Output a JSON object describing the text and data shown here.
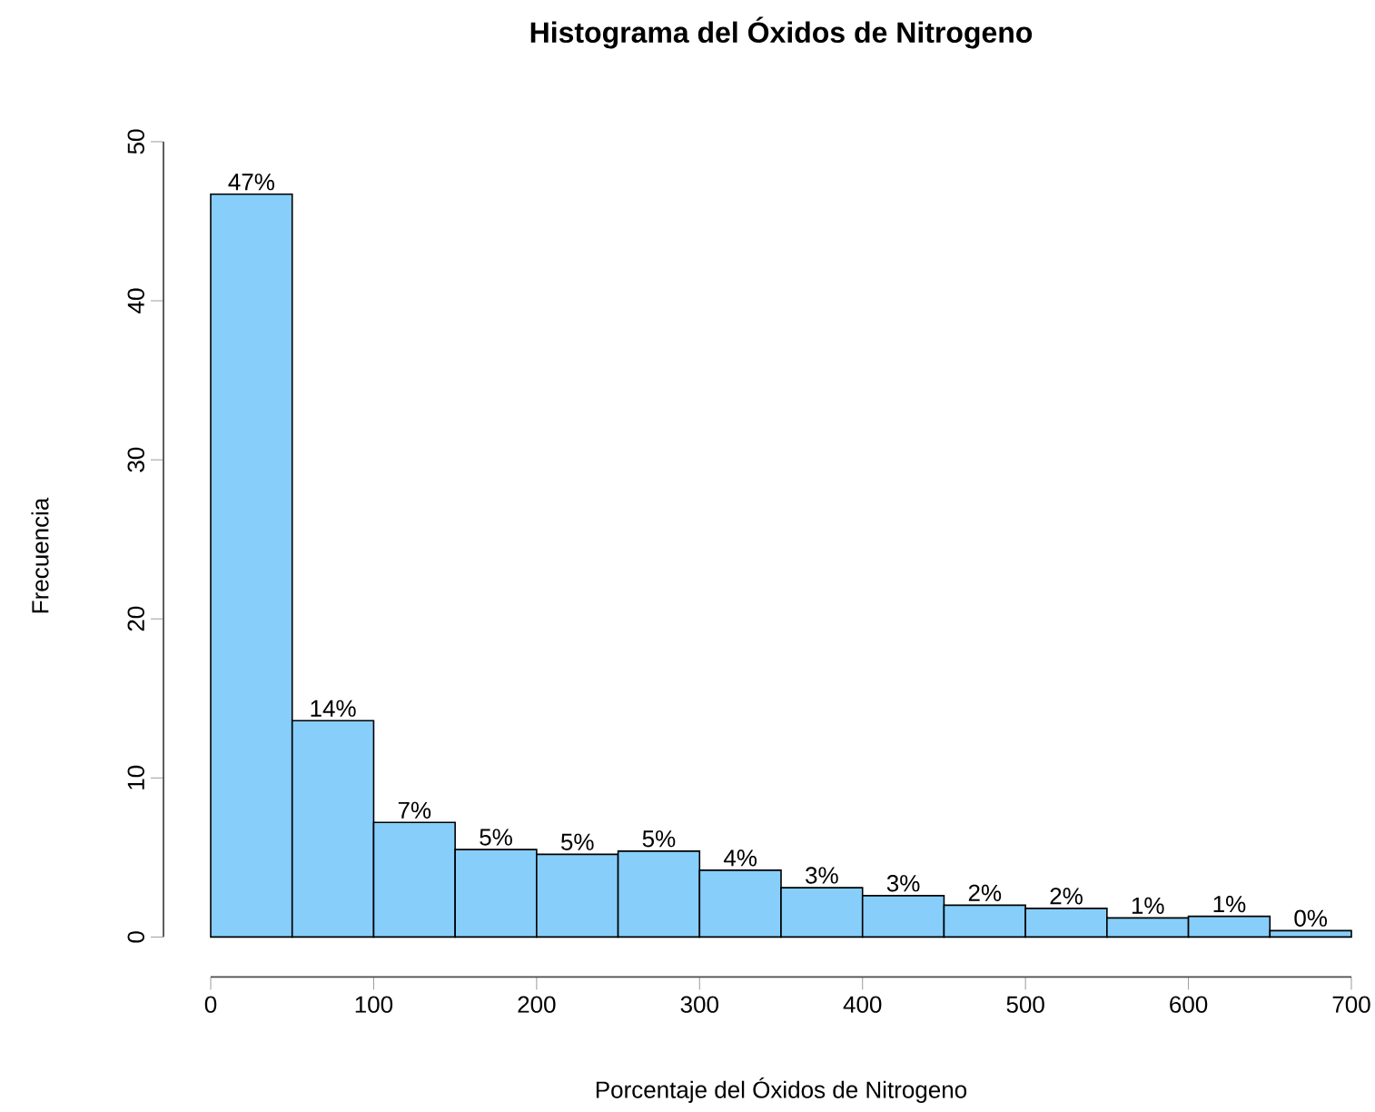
{
  "chart_data": {
    "type": "histogram",
    "title": "Histograma del Óxidos de Nitrogeno",
    "xlabel": "Porcentaje del Óxidos de Nitrogeno",
    "ylabel": "Frecuencia",
    "bins": [
      0,
      50,
      100,
      150,
      200,
      250,
      300,
      350,
      400,
      450,
      500,
      550,
      600,
      650,
      700
    ],
    "values": [
      46.7,
      13.6,
      7.2,
      5.5,
      5.2,
      5.4,
      4.2,
      3.1,
      2.6,
      2.0,
      1.8,
      1.2,
      1.3,
      0.4
    ],
    "value_labels": [
      "47%",
      "14%",
      "7%",
      "5%",
      "5%",
      "5%",
      "4%",
      "3%",
      "3%",
      "2%",
      "2%",
      "1%",
      "1%",
      "0%"
    ],
    "color": "#87cefa",
    "xlim": [
      0,
      700
    ],
    "ylim": [
      0,
      50
    ],
    "xticks": [
      0,
      100,
      200,
      300,
      400,
      500,
      600,
      700
    ],
    "yticks": [
      0,
      10,
      20,
      30,
      40,
      50
    ],
    "grid": false
  }
}
